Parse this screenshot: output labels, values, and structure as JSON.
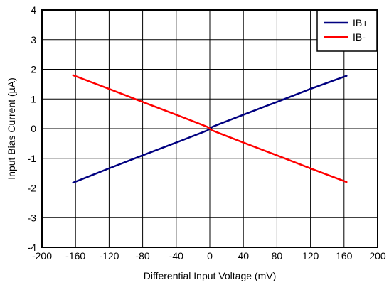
{
  "chart_data": {
    "type": "line",
    "title": "",
    "xlabel": "Differential Input Voltage (mV)",
    "ylabel": "Input Bias Current (µA)",
    "xlim": [
      -200,
      200
    ],
    "ylim": [
      -4,
      4
    ],
    "x_ticks": [
      -200,
      -160,
      -120,
      -80,
      -40,
      0,
      40,
      80,
      120,
      160,
      200
    ],
    "x_tick_labels": [
      "-200",
      "-160",
      "-120",
      "-80",
      "-40",
      "0",
      "40",
      "80",
      "120",
      "160",
      "200"
    ],
    "y_ticks": [
      -4,
      -3,
      -2,
      -1,
      0,
      1,
      2,
      3,
      4
    ],
    "y_tick_labels": [
      "-4",
      "-3",
      "-2",
      "-1",
      "0",
      "1",
      "2",
      "3",
      "4"
    ],
    "grid": true,
    "legend_position": "top-right",
    "series": [
      {
        "name": "IB+",
        "color": "#000080",
        "x": [
          -163,
          -120,
          -80,
          -40,
          -10,
          -3,
          0,
          3,
          10,
          40,
          80,
          120,
          163
        ],
        "y": [
          -1.82,
          -1.34,
          -0.9,
          -0.47,
          -0.14,
          -0.06,
          0.0,
          0.06,
          0.14,
          0.47,
          0.9,
          1.34,
          1.78
        ]
      },
      {
        "name": "IB-",
        "color": "#ff0000",
        "x": [
          -163,
          -120,
          -80,
          -40,
          -10,
          -3,
          0,
          3,
          10,
          40,
          80,
          120,
          163
        ],
        "y": [
          1.8,
          1.34,
          0.9,
          0.47,
          0.14,
          0.06,
          0.0,
          -0.06,
          -0.14,
          -0.47,
          -0.9,
          -1.34,
          -1.8
        ]
      }
    ]
  }
}
